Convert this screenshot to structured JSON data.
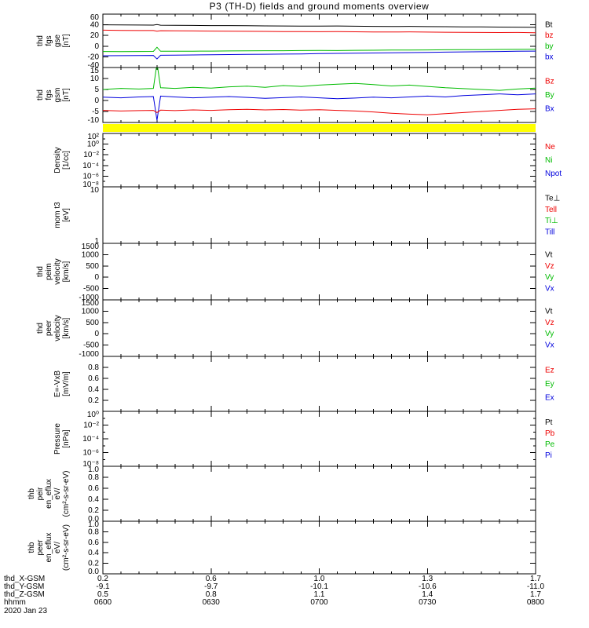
{
  "title": "P3 (TH-D) fields and ground moments overview",
  "colors": {
    "black": "#000000",
    "red": "#ee0000",
    "green": "#00bb00",
    "blue": "#0000dd",
    "yellow": "#ffff00"
  },
  "time_axis": {
    "label": "hhmm",
    "date": "2020 Jan 23",
    "range_minutes": [
      0,
      120
    ],
    "ticks": [
      {
        "minutes": 0,
        "label": "0600"
      },
      {
        "minutes": 30,
        "label": "0630"
      },
      {
        "minutes": 60,
        "label": "0700"
      },
      {
        "minutes": 90,
        "label": "0730"
      },
      {
        "minutes": 120,
        "label": "0800"
      }
    ]
  },
  "position_rows": [
    {
      "label": "thd_X-GSM",
      "values": [
        "0.2",
        "0.6",
        "1.0",
        "1.3",
        "1.7"
      ]
    },
    {
      "label": "thd_Y-GSM",
      "values": [
        "-9.1",
        "-9.7",
        "-10.1",
        "-10.6",
        "-11.0"
      ]
    },
    {
      "label": "thd_Z-GSM",
      "values": [
        "0.5",
        "0.8",
        "1.1",
        "1.4",
        "1.7"
      ]
    }
  ],
  "chart_data": {
    "type": "line",
    "title": "P3 (TH-D) fields and ground moments overview",
    "x_unit": "minutes since 0600 UT, 2020 Jan 23",
    "quality_bar": {
      "color": "yellow",
      "position": "between fgs gsm and density panels"
    },
    "panels": [
      {
        "id": "fgs-gse",
        "ylabel_lines": [
          "thd",
          "fgs",
          "gse",
          "[nT]"
        ],
        "scale": "linear",
        "ylim": [
          -40,
          60
        ],
        "yticks": [
          {
            "v": 60,
            "label": "60"
          },
          {
            "v": 40,
            "label": "40"
          },
          {
            "v": 20,
            "label": "20"
          },
          {
            "v": 0,
            "label": "0"
          },
          {
            "v": -20,
            "label": "-20"
          },
          {
            "v": -40,
            "label": "-40"
          }
        ],
        "legend": [
          {
            "label": "Bt",
            "color": "black"
          },
          {
            "label": "bz",
            "color": "red"
          },
          {
            "label": "by",
            "color": "green"
          },
          {
            "label": "bx",
            "color": "blue"
          }
        ],
        "x": [
          0,
          5,
          10,
          14,
          15,
          16,
          20,
          25,
          30,
          35,
          40,
          45,
          50,
          55,
          60,
          65,
          70,
          75,
          80,
          85,
          90,
          95,
          100,
          105,
          110,
          115,
          120
        ],
        "series": [
          {
            "name": "bx",
            "color": "blue",
            "y": [
              -18,
              -17.8,
              -17.5,
              -17.4,
              -24,
              -17,
              -16.8,
              -16.5,
              -16.2,
              -15.8,
              -15.5,
              -15.2,
              -14.8,
              -14.5,
              -14,
              -13.6,
              -13.2,
              -12.8,
              -12.4,
              -12,
              -11.6,
              -11.2,
              -10.8,
              -10.4,
              -10,
              -9.6,
              -9.2
            ]
          },
          {
            "name": "by",
            "color": "green",
            "y": [
              -10,
              -10.2,
              -10,
              -9.8,
              -2,
              -9.5,
              -9.6,
              -9.4,
              -9.2,
              -9,
              -8.8,
              -8.6,
              -8.5,
              -8.3,
              -8,
              -8.2,
              -7.8,
              -7.6,
              -7.4,
              -7.2,
              -7,
              -6.8,
              -6.6,
              -6.4,
              -6.2,
              -6,
              -5.8
            ]
          },
          {
            "name": "bz",
            "color": "red",
            "y": [
              30,
              29.6,
              29.3,
              29.2,
              28,
              29,
              28.8,
              28.5,
              28.3,
              28,
              27.8,
              27.6,
              27.4,
              27.2,
              27,
              27.3,
              26.9,
              26.6,
              26.4,
              26.7,
              26.3,
              26,
              25.8,
              25.6,
              25.4,
              25.6,
              25.2
            ]
          },
          {
            "name": "Bt",
            "color": "black",
            "y": [
              40,
              39.8,
              39.5,
              39.4,
              40.5,
              39.2,
              39,
              38.8,
              38.6,
              38.5,
              38.3,
              38,
              37.8,
              37.6,
              37.5,
              37.8,
              37.4,
              37,
              36.8,
              37,
              36.6,
              36.4,
              36.2,
              36,
              35.8,
              35.6,
              35.4
            ]
          }
        ]
      },
      {
        "id": "fgs-gsm",
        "ylabel_lines": [
          "thd",
          "fgs",
          "gsm",
          "[nT]"
        ],
        "scale": "linear",
        "ylim": [
          -10,
          15
        ],
        "yticks": [
          {
            "v": 15,
            "label": "15"
          },
          {
            "v": 10,
            "label": "10"
          },
          {
            "v": 5,
            "label": "5"
          },
          {
            "v": 0,
            "label": "0"
          },
          {
            "v": -5,
            "label": "-5"
          },
          {
            "v": -10,
            "label": "-10"
          }
        ],
        "legend": [
          {
            "label": "Bz",
            "color": "red"
          },
          {
            "label": "By",
            "color": "green"
          },
          {
            "label": "Bx",
            "color": "blue"
          }
        ],
        "x": [
          0,
          5,
          10,
          14,
          15,
          16,
          20,
          25,
          30,
          35,
          40,
          45,
          50,
          55,
          60,
          65,
          70,
          75,
          80,
          85,
          90,
          95,
          100,
          105,
          110,
          115,
          120
        ],
        "series": [
          {
            "name": "Bx",
            "color": "blue",
            "y": [
              1.5,
              1.2,
              1.6,
              1.8,
              -9,
              2,
              1.6,
              1.2,
              1.5,
              1.8,
              1.4,
              1,
              1.3,
              1.6,
              1.2,
              0.8,
              1.1,
              1.5,
              1.2,
              1.6,
              2,
              1.6,
              2.2,
              2.6,
              3,
              2.6,
              3
            ]
          },
          {
            "name": "Bz",
            "color": "red",
            "y": [
              -4.5,
              -4.8,
              -4.6,
              -4.5,
              -5.5,
              -4.4,
              -4.6,
              -4.3,
              -4.5,
              -4.2,
              -4,
              -4.3,
              -4.1,
              -4.4,
              -4.2,
              -4.5,
              -4.8,
              -5.2,
              -5.8,
              -6.2,
              -6.5,
              -6,
              -5.5,
              -5,
              -4.5,
              -4,
              -3.8
            ]
          },
          {
            "name": "By",
            "color": "green",
            "y": [
              5,
              5.5,
              5.2,
              5.5,
              17,
              5.8,
              5.5,
              6,
              5.6,
              6.2,
              6.5,
              6,
              6.8,
              6.4,
              7,
              7.4,
              7.8,
              7.2,
              6.6,
              7,
              6.4,
              5.8,
              5.4,
              5,
              4.6,
              5.2,
              5.6
            ]
          }
        ]
      },
      {
        "id": "density",
        "ylabel_lines": [
          "Density",
          "[1/cc]"
        ],
        "scale": "log",
        "ylim": [
          1e-08,
          100
        ],
        "yticks": [
          {
            "v": 100,
            "label": "10²"
          },
          {
            "v": 1,
            "label": "10⁰"
          },
          {
            "v": 0.01,
            "label": "10⁻²"
          },
          {
            "v": 0.0001,
            "label": "10⁻⁴"
          },
          {
            "v": 1e-06,
            "label": "10⁻⁶"
          },
          {
            "v": 1e-08,
            "label": "10⁻⁸"
          }
        ],
        "legend": [
          {
            "label": "Ne",
            "color": "red"
          },
          {
            "label": "Ni",
            "color": "green"
          },
          {
            "label": "Npot",
            "color": "blue"
          }
        ],
        "x": [],
        "series": []
      },
      {
        "id": "mom-temp",
        "ylabel_lines": [
          "mom t3",
          "[eV]"
        ],
        "scale": "log",
        "ylim": [
          1,
          10
        ],
        "yticks": [
          {
            "v": 10,
            "label": "10"
          },
          {
            "v": 1,
            "label": "1"
          }
        ],
        "legend": [
          {
            "label": "Te⊥",
            "color": "black"
          },
          {
            "label": "Tell",
            "color": "red"
          },
          {
            "label": "Ti⊥",
            "color": "green"
          },
          {
            "label": "Till",
            "color": "blue"
          }
        ],
        "x": [],
        "series": []
      },
      {
        "id": "peim-velocity",
        "ylabel_lines": [
          "thd",
          "peim",
          "velocity",
          "[km/s]"
        ],
        "scale": "linear",
        "ylim": [
          -1000,
          1500
        ],
        "yticks": [
          {
            "v": 1500,
            "label": "1500"
          },
          {
            "v": 1000,
            "label": "1000"
          },
          {
            "v": 500,
            "label": "500"
          },
          {
            "v": 0,
            "label": "0"
          },
          {
            "v": -500,
            "label": "-500"
          },
          {
            "v": -1000,
            "label": "-1000"
          }
        ],
        "legend": [
          {
            "label": "Vt",
            "color": "black"
          },
          {
            "label": "Vz",
            "color": "red"
          },
          {
            "label": "Vy",
            "color": "green"
          },
          {
            "label": "Vx",
            "color": "blue"
          }
        ],
        "x": [],
        "series": []
      },
      {
        "id": "peer-velocity",
        "ylabel_lines": [
          "thd",
          "peer",
          "velocity",
          "[km/s]"
        ],
        "scale": "linear",
        "ylim": [
          -1000,
          1500
        ],
        "yticks": [
          {
            "v": 1500,
            "label": "1500"
          },
          {
            "v": 1000,
            "label": "1000"
          },
          {
            "v": 500,
            "label": "500"
          },
          {
            "v": 0,
            "label": "0"
          },
          {
            "v": -500,
            "label": "-500"
          },
          {
            "v": -1000,
            "label": "-1000"
          }
        ],
        "legend": [
          {
            "label": "Vt",
            "color": "black"
          },
          {
            "label": "Vz",
            "color": "red"
          },
          {
            "label": "Vy",
            "color": "green"
          },
          {
            "label": "Vx",
            "color": "blue"
          }
        ],
        "x": [],
        "series": []
      },
      {
        "id": "e-field",
        "ylabel_lines": [
          "E=-VxB",
          "[mV/m]"
        ],
        "scale": "linear",
        "ylim": [
          0,
          1
        ],
        "yticks": [
          {
            "v": 0.8,
            "label": "0.8"
          },
          {
            "v": 0.6,
            "label": "0.6"
          },
          {
            "v": 0.4,
            "label": "0.4"
          },
          {
            "v": 0.2,
            "label": "0.2"
          }
        ],
        "legend": [
          {
            "label": "Ez",
            "color": "red"
          },
          {
            "label": "Ey",
            "color": "green"
          },
          {
            "label": "Ex",
            "color": "blue"
          }
        ],
        "x": [],
        "series": []
      },
      {
        "id": "pressure",
        "ylabel_lines": [
          "Pressure",
          "[nPa]"
        ],
        "scale": "log",
        "ylim": [
          1e-08,
          1
        ],
        "yticks": [
          {
            "v": 1,
            "label": "10⁰"
          },
          {
            "v": 0.01,
            "label": "10⁻²"
          },
          {
            "v": 0.0001,
            "label": "10⁻⁴"
          },
          {
            "v": 1e-06,
            "label": "10⁻⁶"
          },
          {
            "v": 1e-08,
            "label": "10⁻⁸"
          }
        ],
        "legend": [
          {
            "label": "Pt",
            "color": "black"
          },
          {
            "label": "Pb",
            "color": "red"
          },
          {
            "label": "Pe",
            "color": "green"
          },
          {
            "label": "Pi",
            "color": "blue"
          }
        ],
        "x": [],
        "series": []
      },
      {
        "id": "peir-eflux",
        "ylabel_lines": [
          "thb",
          "peir",
          "en_eflux",
          "eV/",
          "(cm²-s-sr-eV)"
        ],
        "scale": "linear",
        "ylim": [
          0,
          1
        ],
        "yticks": [
          {
            "v": 1,
            "label": "1.0"
          },
          {
            "v": 0.8,
            "label": "0.8"
          },
          {
            "v": 0.6,
            "label": "0.6"
          },
          {
            "v": 0.4,
            "label": "0.4"
          },
          {
            "v": 0.2,
            "label": "0.2"
          },
          {
            "v": 0,
            "label": "0.0"
          }
        ],
        "legend": [],
        "x": [],
        "series": []
      },
      {
        "id": "peer-eflux",
        "ylabel_lines": [
          "thb",
          "peer",
          "en_eflux",
          "eV/",
          "(cm²-s-sr-eV)"
        ],
        "scale": "linear",
        "ylim": [
          0,
          1
        ],
        "yticks": [
          {
            "v": 1,
            "label": "1.0"
          },
          {
            "v": 0.8,
            "label": "0.8"
          },
          {
            "v": 0.6,
            "label": "0.6"
          },
          {
            "v": 0.4,
            "label": "0.4"
          },
          {
            "v": 0.2,
            "label": "0.2"
          },
          {
            "v": 0,
            "label": "0.0"
          }
        ],
        "legend": [],
        "x": [],
        "series": []
      }
    ]
  }
}
